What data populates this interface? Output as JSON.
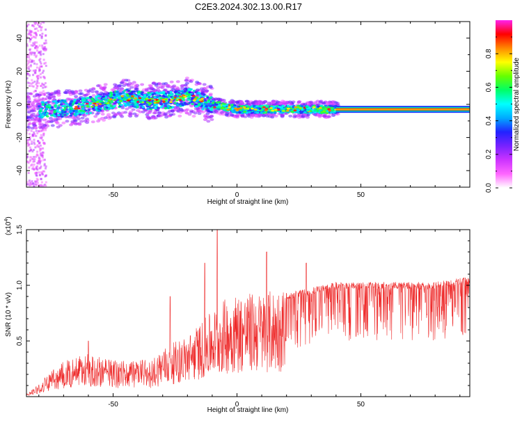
{
  "title": "C2E3.2024.302.13.00.R17",
  "colors": {
    "snr_line": "#ee2a2a",
    "colorbar_stops": [
      "#ffffff",
      "#ff66ff",
      "#cc33ff",
      "#7722ff",
      "#2222ff",
      "#00aaff",
      "#00ffff",
      "#00ff66",
      "#66ff00",
      "#ffff00",
      "#ff8800",
      "#ff0000",
      "#ff22ee"
    ]
  },
  "chart_data": [
    {
      "type": "heatmap",
      "xlabel": "Height of straight line (km)",
      "ylabel": "Frequency (Hz)",
      "xlim": [
        -85,
        94
      ],
      "ylim": [
        -50,
        50
      ],
      "xticks": [
        -50,
        0,
        50
      ],
      "yticks": [
        -40,
        -20,
        0,
        20,
        40
      ],
      "colorbar": {
        "label": "Normalized spectral amplitude",
        "range": [
          0,
          1
        ],
        "ticks": [
          "0.0",
          "0.2",
          "0.4",
          "0.6",
          "0.8"
        ],
        "tick_values": [
          0.0,
          0.2,
          0.4,
          0.6,
          0.8
        ]
      },
      "trace_center_hz": [
        {
          "x": -85,
          "y": -4
        },
        {
          "x": -75,
          "y": -3
        },
        {
          "x": -65,
          "y": -2
        },
        {
          "x": -55,
          "y": 1
        },
        {
          "x": -45,
          "y": 4
        },
        {
          "x": -35,
          "y": 2
        },
        {
          "x": -25,
          "y": 3
        },
        {
          "x": -20,
          "y": 5
        },
        {
          "x": -10,
          "y": 0
        },
        {
          "x": 0,
          "y": -3
        },
        {
          "x": 10,
          "y": -3
        },
        {
          "x": 20,
          "y": -3
        },
        {
          "x": 30,
          "y": -3
        },
        {
          "x": 40,
          "y": -3
        },
        {
          "x": 94,
          "y": -3
        }
      ]
    },
    {
      "type": "line",
      "xlabel": "Height of straight line (km)",
      "ylabel": "SNR (10 * v/v)",
      "y_multiplier": "(x10",
      "y_multiplier_exp": "4",
      "xlim": [
        -85,
        94
      ],
      "ylim": [
        0,
        1.5
      ],
      "xticks": [
        -50,
        0,
        50
      ],
      "yticks": [
        "0.5",
        "1.0",
        "1.5"
      ],
      "ytick_values": [
        0.5,
        1.0,
        1.5
      ],
      "envelope": [
        {
          "x": -85,
          "y": 0.02
        },
        {
          "x": -78,
          "y": 0.15
        },
        {
          "x": -70,
          "y": 0.3
        },
        {
          "x": -60,
          "y": 0.35
        },
        {
          "x": -50,
          "y": 0.3
        },
        {
          "x": -45,
          "y": 0.3
        },
        {
          "x": -40,
          "y": 0.3
        },
        {
          "x": -35,
          "y": 0.3
        },
        {
          "x": -30,
          "y": 0.4
        },
        {
          "x": -20,
          "y": 0.5
        },
        {
          "x": -10,
          "y": 0.7
        },
        {
          "x": -5,
          "y": 0.8
        },
        {
          "x": 0,
          "y": 0.85
        },
        {
          "x": 10,
          "y": 0.85
        },
        {
          "x": 20,
          "y": 0.9
        },
        {
          "x": 30,
          "y": 0.95
        },
        {
          "x": 40,
          "y": 1.0
        },
        {
          "x": 50,
          "y": 1.0
        },
        {
          "x": 60,
          "y": 1.0
        },
        {
          "x": 70,
          "y": 1.0
        },
        {
          "x": 80,
          "y": 1.0
        },
        {
          "x": 94,
          "y": 1.05
        }
      ],
      "spikes": [
        {
          "x": -8,
          "y": 1.5
        },
        {
          "x": -13,
          "y": 1.2
        },
        {
          "x": -27,
          "y": 0.9
        },
        {
          "x": 12,
          "y": 1.3
        },
        {
          "x": -60,
          "y": 0.5
        },
        {
          "x": 28,
          "y": 1.2
        }
      ]
    }
  ]
}
